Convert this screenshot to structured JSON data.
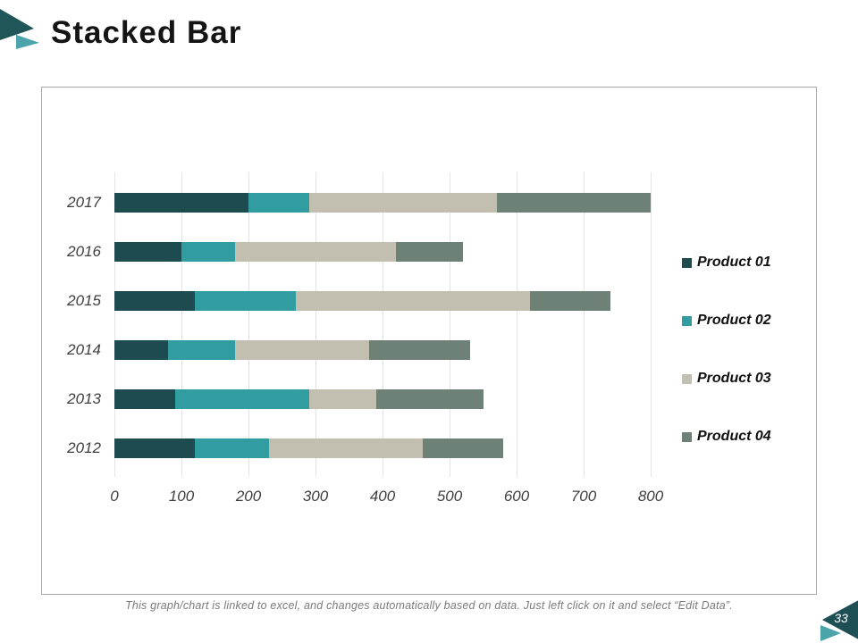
{
  "slide": {
    "title": "Stacked Bar",
    "page_number": "33",
    "footer_note": "This graph/chart is linked to excel, and changes automatically based on data. Just left click on it and select “Edit Data”."
  },
  "colors": {
    "logo_dark": "#215659",
    "logo_light": "#4ba4a9",
    "badge_dark": "#1e4f54",
    "badge_light": "#4ba4a9",
    "chart_border": "#a9a9a9",
    "gridline": "#e4e4e4",
    "axis_text": "#3f3f3f",
    "legend_text": "#111111",
    "title_text": "#141414",
    "footer_text": "#7a7a7a"
  },
  "chart_data": {
    "type": "bar",
    "orientation": "horizontal",
    "stacked": true,
    "title": "",
    "categories": [
      "2017",
      "2016",
      "2015",
      "2014",
      "2013",
      "2012"
    ],
    "series": [
      {
        "name": "Product 01",
        "color": "#1d4b4f",
        "values": [
          200,
          100,
          120,
          80,
          90,
          120
        ]
      },
      {
        "name": "Product 02",
        "color": "#329da0",
        "values": [
          90,
          80,
          150,
          100,
          200,
          110
        ]
      },
      {
        "name": "Product 03",
        "color": "#c2bfb1",
        "values": [
          280,
          240,
          350,
          200,
          100,
          230
        ]
      },
      {
        "name": "Product 04",
        "color": "#6d8177",
        "values": [
          230,
          100,
          120,
          150,
          160,
          120
        ]
      }
    ],
    "totals": [
      800,
      520,
      740,
      530,
      550,
      580
    ],
    "xlim": [
      0,
      800
    ],
    "xticks": [
      0,
      100,
      200,
      300,
      400,
      500,
      600,
      700,
      800
    ],
    "grid": "vertical",
    "legend_position": "right"
  }
}
